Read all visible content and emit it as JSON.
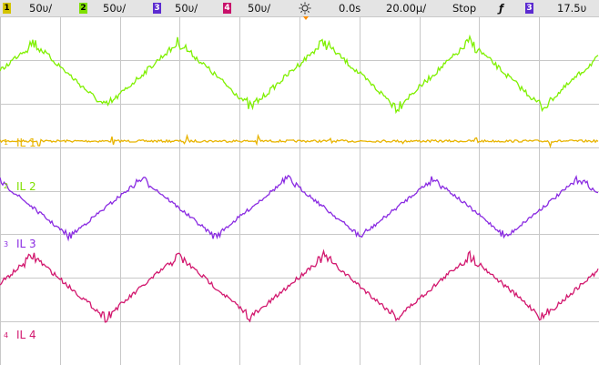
{
  "status_bar": {
    "channels": [
      {
        "number": "1",
        "scale": "50υ/",
        "color": "#d4c400"
      },
      {
        "number": "2",
        "scale": "50υ/",
        "color": "#7fe000"
      },
      {
        "number": "3",
        "scale": "50υ/",
        "color": "#5c2bd0"
      },
      {
        "number": "4",
        "scale": "50υ/",
        "color": "#c8106a"
      }
    ],
    "time_ref_icon": "sun-icon",
    "delay": "0.0s",
    "timebase": "20.00μ/",
    "run_state": "Stop",
    "trigger_edge_icon": "rising-edge-icon",
    "trigger_channel": "3",
    "trigger_level": "17.5υ"
  },
  "traces": [
    {
      "name": "IL 1",
      "marker": "1",
      "color": "#e8b400",
      "shape": "flat"
    },
    {
      "name": "IL 2",
      "marker": "2",
      "color": "#7ff000",
      "shape": "triangle"
    },
    {
      "name": "IL 3",
      "marker": "3",
      "color": "#8a2be2",
      "shape": "triangle"
    },
    {
      "name": "IL 4",
      "marker": "4",
      "color": "#d2176e",
      "shape": "triangle"
    }
  ],
  "colors": {
    "grid": "#c8c8c8",
    "trigger_marker": "#ff8c00"
  }
}
